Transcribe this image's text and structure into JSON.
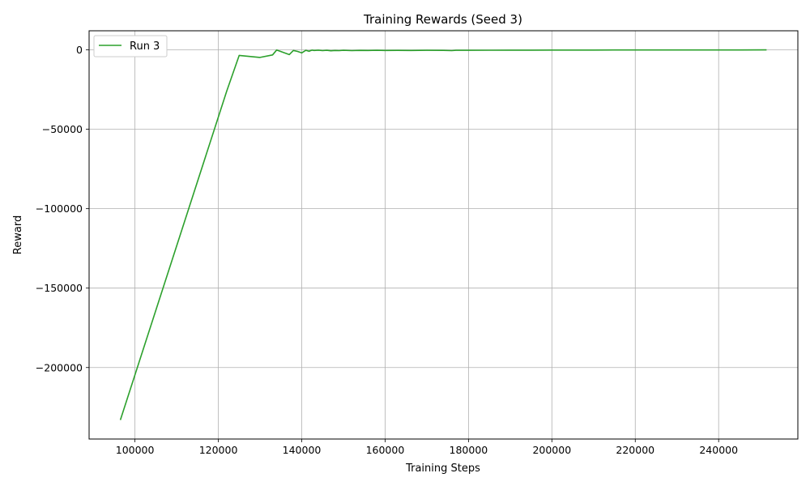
{
  "chart_data": {
    "type": "line",
    "title": "Training Rewards (Seed 3)",
    "xlabel": "Training Steps",
    "ylabel": "Reward",
    "xlim": [
      89000,
      259000
    ],
    "ylim": [
      -245000,
      12000
    ],
    "xticks": [
      100000,
      120000,
      140000,
      160000,
      180000,
      200000,
      220000,
      240000
    ],
    "yticks": [
      0,
      -50000,
      -100000,
      -150000,
      -200000
    ],
    "xtick_labels": [
      "100000",
      "120000",
      "140000",
      "160000",
      "180000",
      "200000",
      "220000",
      "240000"
    ],
    "ytick_labels": [
      "0",
      "−50000",
      "−100000",
      "−150000",
      "−200000"
    ],
    "grid": true,
    "legend_position": "top-left",
    "series": [
      {
        "name": "Run 3",
        "color": "#2ca02c",
        "x": [
          96500,
          122000,
          125000,
          130000,
          133000,
          134000,
          137000,
          138000,
          139000,
          140000,
          141000,
          141800,
          142000,
          142500,
          143000,
          144000,
          145000,
          146000,
          147000,
          148000,
          149000,
          150000,
          152000,
          154000,
          156000,
          158000,
          160000,
          163000,
          166000,
          170000,
          174000,
          176000,
          177000,
          180000,
          185000,
          190000,
          195000,
          200000,
          205000,
          210000,
          215000,
          220000,
          225000,
          230000,
          235000,
          240000,
          245000,
          251500
        ],
        "y": [
          -233000,
          -26000,
          -3500,
          -4800,
          -3200,
          -100,
          -3000,
          -400,
          -1000,
          -1900,
          -300,
          -900,
          -600,
          -200,
          -400,
          -200,
          -500,
          -300,
          -600,
          -400,
          -500,
          -300,
          -500,
          -350,
          -400,
          -300,
          -400,
          -350,
          -400,
          -300,
          -350,
          -500,
          -300,
          -300,
          -250,
          -200,
          -200,
          -150,
          -150,
          -120,
          -100,
          -100,
          -100,
          -80,
          -80,
          -80,
          -60,
          -50
        ]
      }
    ]
  }
}
